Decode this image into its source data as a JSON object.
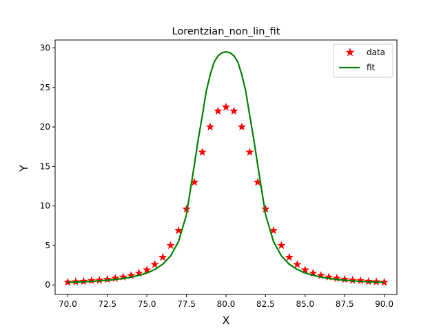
{
  "chart_data": {
    "type": "scatter",
    "title": "Lorentzian_non_lin_fit",
    "xlabel": "X",
    "ylabel": "Y",
    "xlim": [
      69.2,
      90.8
    ],
    "ylim": [
      -1.2,
      31.0
    ],
    "x_ticks": [
      70.0,
      72.5,
      75.0,
      77.5,
      80.0,
      82.5,
      85.0,
      87.5,
      90.0
    ],
    "x_tick_labels": [
      "70.0",
      "72.5",
      "75.0",
      "77.5",
      "80.0",
      "82.5",
      "85.0",
      "87.5",
      "90.0"
    ],
    "y_ticks": [
      0,
      5,
      10,
      15,
      20,
      25,
      30
    ],
    "y_tick_labels": [
      "0",
      "5",
      "10",
      "15",
      "20",
      "25",
      "30"
    ],
    "grid": false,
    "legend_position": "top-right",
    "series": [
      {
        "name": "data",
        "kind": "scatter",
        "marker": "star",
        "color": "#ff0000",
        "x": [
          70.0,
          70.5,
          71.0,
          71.5,
          72.0,
          72.5,
          73.0,
          73.5,
          74.0,
          74.5,
          75.0,
          75.5,
          76.0,
          76.5,
          77.0,
          77.5,
          78.0,
          78.5,
          79.0,
          79.5,
          80.0,
          80.5,
          81.0,
          81.5,
          82.0,
          82.5,
          83.0,
          83.5,
          84.0,
          84.5,
          85.0,
          85.5,
          86.0,
          86.5,
          87.0,
          87.5,
          88.0,
          88.5,
          89.0,
          89.5,
          90.0
        ],
        "y": [
          0.35,
          0.4,
          0.45,
          0.55,
          0.6,
          0.7,
          0.85,
          1.0,
          1.2,
          1.5,
          1.9,
          2.6,
          3.5,
          5.0,
          6.9,
          9.6,
          13.0,
          16.8,
          20.0,
          22.0,
          22.5,
          22.0,
          20.0,
          16.8,
          13.0,
          9.6,
          6.9,
          5.0,
          3.5,
          2.6,
          1.9,
          1.5,
          1.2,
          1.0,
          0.85,
          0.7,
          0.6,
          0.55,
          0.45,
          0.4,
          0.35
        ]
      },
      {
        "name": "fit",
        "kind": "line",
        "color": "#008000",
        "x": [
          70.0,
          70.5,
          71.0,
          71.5,
          72.0,
          72.5,
          73.0,
          73.5,
          74.0,
          74.5,
          75.0,
          75.5,
          76.0,
          76.5,
          77.0,
          77.5,
          78.0,
          78.25,
          78.5,
          78.75,
          79.0,
          79.25,
          79.5,
          79.75,
          80.0,
          80.25,
          80.5,
          80.75,
          81.0,
          81.25,
          81.5,
          81.75,
          82.0,
          82.5,
          83.0,
          83.5,
          84.0,
          84.5,
          85.0,
          85.5,
          86.0,
          86.5,
          87.0,
          87.5,
          88.0,
          88.5,
          89.0,
          89.5,
          90.0
        ],
        "y": [
          0.33,
          0.36,
          0.4,
          0.45,
          0.52,
          0.6,
          0.7,
          0.83,
          1.0,
          1.22,
          1.52,
          1.96,
          2.62,
          3.68,
          5.5,
          8.9,
          15.2,
          18.5,
          21.4,
          24.5,
          26.6,
          28.2,
          29.0,
          29.4,
          29.5,
          29.4,
          29.0,
          28.2,
          26.6,
          24.5,
          21.4,
          18.5,
          15.2,
          8.9,
          5.5,
          3.68,
          2.62,
          1.96,
          1.52,
          1.22,
          1.0,
          0.83,
          0.7,
          0.6,
          0.52,
          0.45,
          0.4,
          0.36,
          0.33
        ]
      }
    ]
  }
}
